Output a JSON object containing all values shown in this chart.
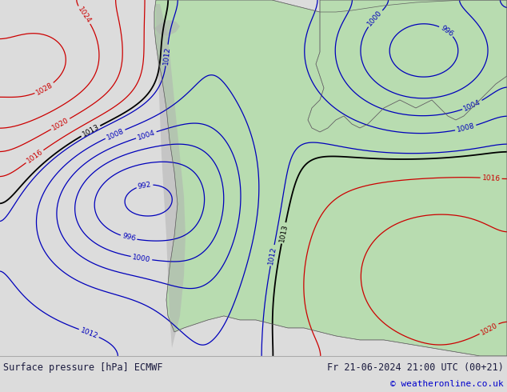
{
  "title_left": "Surface pressure [hPa] ECMWF",
  "title_right": "Fr 21-06-2024 21:00 UTC (00+21)",
  "copyright": "© weatheronline.co.uk",
  "bg_map_color": "#c8c8c8",
  "land_color": "#b8dcb0",
  "ocean_color": "#c8c8c8",
  "label_color_black": "#000000",
  "label_color_blue": "#0000bb",
  "label_color_red": "#cc0000",
  "contour_black": "#000000",
  "contour_blue": "#0000bb",
  "contour_red": "#cc0000",
  "footer_bg": "#dcdcdc",
  "footer_text_color": "#1a1a6e",
  "figsize": [
    6.34,
    4.9
  ],
  "dpi": 100
}
